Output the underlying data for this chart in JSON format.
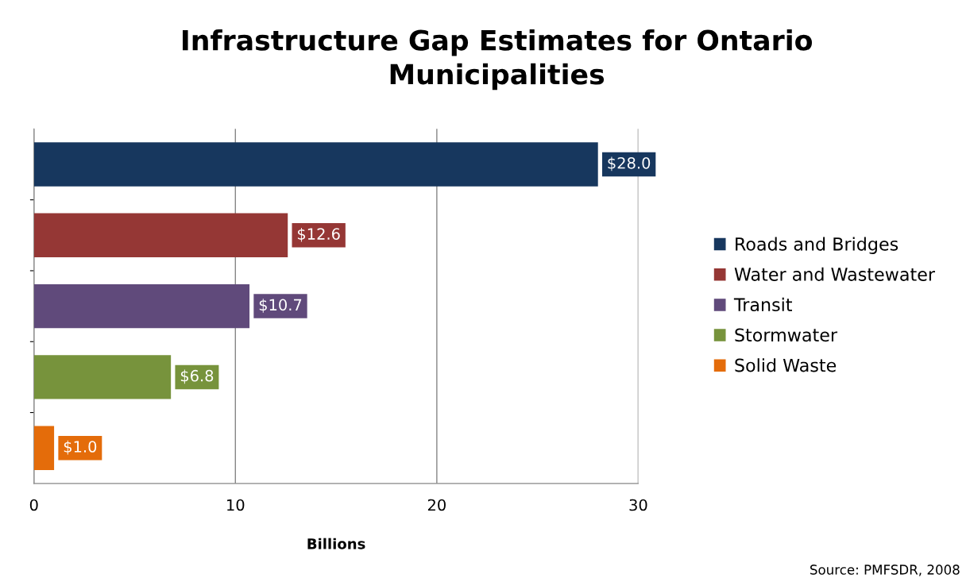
{
  "chart_data": {
    "type": "bar",
    "orientation": "horizontal",
    "title": "Infrastructure Gap Estimates for Ontario\nMunicipalities",
    "xlabel": "Billions",
    "categories": [
      null,
      null,
      null,
      null,
      null
    ],
    "series": [
      {
        "name": "Roads and Bridges",
        "color": "#17375e",
        "values": [
          28.0,
          null,
          null,
          null,
          null
        ],
        "value_labels": [
          "$28.0",
          null,
          null,
          null,
          null
        ]
      },
      {
        "name": "Water and Wastewater",
        "color": "#953735",
        "values": [
          null,
          12.6,
          null,
          null,
          null
        ],
        "value_labels": [
          null,
          "$12.6",
          null,
          null,
          null
        ]
      },
      {
        "name": "Transit",
        "color": "#604a7b",
        "values": [
          null,
          null,
          10.7,
          null,
          null
        ],
        "value_labels": [
          null,
          null,
          "$10.7",
          null,
          null
        ]
      },
      {
        "name": "Stormwater",
        "color": "#77933c",
        "values": [
          null,
          null,
          null,
          6.8,
          null
        ],
        "value_labels": [
          null,
          null,
          null,
          "$6.8",
          null
        ]
      },
      {
        "name": "Solid Waste",
        "color": "#e46c0a",
        "values": [
          null,
          null,
          null,
          null,
          1.0
        ],
        "value_labels": [
          null,
          null,
          null,
          null,
          "$1.0"
        ]
      }
    ],
    "xlim": [
      0,
      30
    ],
    "xticks": [
      0,
      10,
      20,
      30
    ],
    "grid": "x",
    "legend": "right",
    "annotations": [
      "Source: PMFSDR, 2008"
    ]
  }
}
